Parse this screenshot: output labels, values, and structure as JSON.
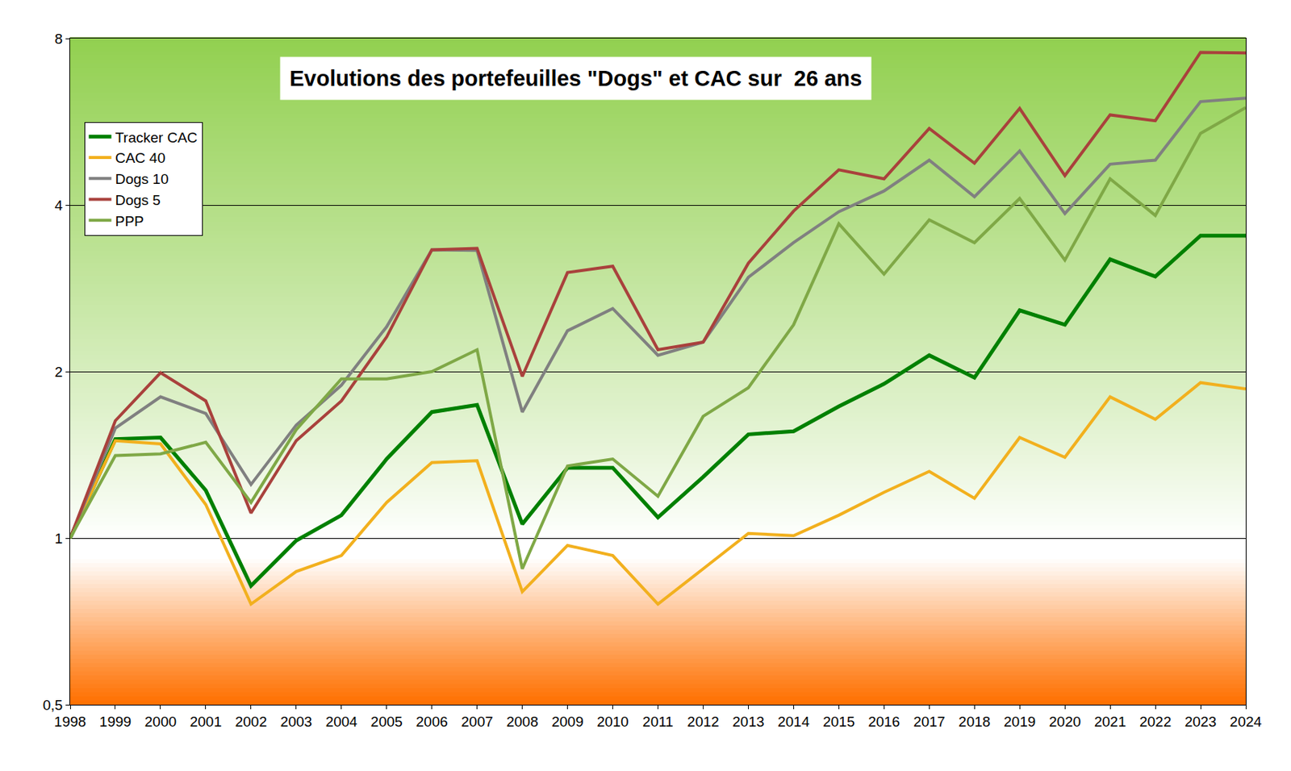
{
  "chart_data": {
    "type": "line",
    "title": "Evolutions des portefeuilles \"Dogs\" et CAC sur  26 ans",
    "x": [
      1998,
      1999,
      2000,
      2001,
      2002,
      2003,
      2004,
      2005,
      2006,
      2007,
      2008,
      2009,
      2010,
      2011,
      2012,
      2013,
      2014,
      2015,
      2016,
      2017,
      2018,
      2019,
      2020,
      2021,
      2022,
      2023,
      2024
    ],
    "series": [
      {
        "name": "Tracker CAC",
        "color": "#008000",
        "values": [
          1.0,
          1.51,
          1.52,
          1.22,
          0.82,
          0.99,
          1.1,
          1.39,
          1.69,
          1.74,
          1.06,
          1.34,
          1.34,
          1.09,
          1.29,
          1.54,
          1.56,
          1.73,
          1.9,
          2.14,
          1.95,
          2.58,
          2.43,
          3.19,
          2.97,
          3.52,
          3.52
        ]
      },
      {
        "name": "CAC 40",
        "color": "#f2b01e",
        "values": [
          1.0,
          1.5,
          1.48,
          1.15,
          0.76,
          0.87,
          0.93,
          1.16,
          1.37,
          1.38,
          0.8,
          0.97,
          0.93,
          0.76,
          0.88,
          1.02,
          1.01,
          1.1,
          1.21,
          1.32,
          1.18,
          1.52,
          1.4,
          1.8,
          1.64,
          1.91,
          1.86
        ]
      },
      {
        "name": "Dogs 10",
        "color": "#808080",
        "values": [
          1.0,
          1.58,
          1.8,
          1.68,
          1.25,
          1.6,
          1.89,
          2.41,
          3.32,
          3.31,
          1.69,
          2.37,
          2.6,
          2.14,
          2.26,
          2.96,
          3.42,
          3.89,
          4.24,
          4.82,
          4.14,
          5.01,
          3.86,
          4.74,
          4.82,
          6.15,
          6.24
        ]
      },
      {
        "name": "Dogs 5",
        "color": "#a9413c",
        "values": [
          1.0,
          1.63,
          1.99,
          1.77,
          1.11,
          1.5,
          1.77,
          2.31,
          3.32,
          3.34,
          1.96,
          3.02,
          3.1,
          2.19,
          2.26,
          3.14,
          3.9,
          4.63,
          4.46,
          5.5,
          4.76,
          5.98,
          4.52,
          5.82,
          5.68,
          7.55,
          7.53
        ]
      },
      {
        "name": "PPP",
        "color": "#7fa846",
        "values": [
          1.0,
          1.41,
          1.42,
          1.49,
          1.16,
          1.57,
          1.94,
          1.94,
          2.0,
          2.19,
          0.88,
          1.35,
          1.39,
          1.19,
          1.66,
          1.87,
          2.43,
          3.7,
          3.0,
          3.76,
          3.42,
          4.11,
          3.18,
          4.46,
          3.83,
          5.39,
          6.0
        ]
      }
    ],
    "xlim": [
      1998,
      2024
    ],
    "xticks": [
      1998,
      1999,
      2000,
      2001,
      2002,
      2003,
      2004,
      2005,
      2006,
      2007,
      2008,
      2009,
      2010,
      2011,
      2012,
      2013,
      2014,
      2015,
      2016,
      2017,
      2018,
      2019,
      2020,
      2021,
      2022,
      2023,
      2024
    ],
    "ylim": [
      0.5,
      8
    ],
    "yticks": [
      {
        "value": 0.5,
        "label": "0,5"
      },
      1,
      2,
      4,
      8
    ],
    "log": "y",
    "grid": true,
    "legend": "top-left"
  }
}
